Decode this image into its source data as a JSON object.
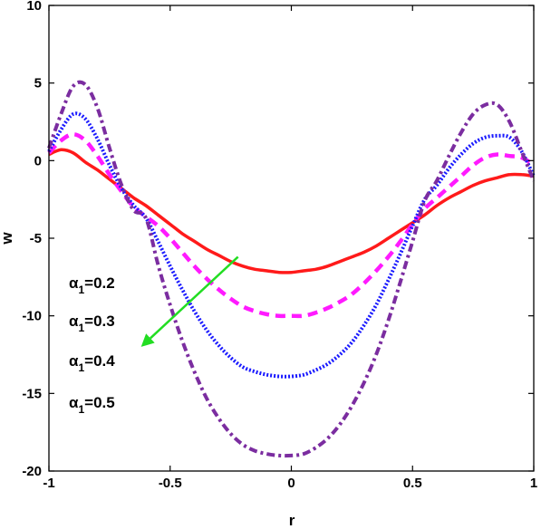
{
  "chart_data": {
    "type": "line",
    "xlabel": "r",
    "ylabel": "w",
    "xlim": [
      -1,
      1
    ],
    "ylim": [
      -20,
      10
    ],
    "x_ticks": [
      "-1",
      "-0.5",
      "0",
      "0.5",
      "1"
    ],
    "y_ticks": [
      "10",
      "5",
      "0",
      "-5",
      "-10",
      "-15",
      "-20"
    ],
    "grid": false,
    "series": [
      {
        "style": "solid",
        "color": "#ff1a1a",
        "x": [
          -1,
          -0.95,
          -0.9,
          -0.85,
          -0.8,
          -0.75,
          -0.7,
          -0.65,
          -0.6,
          -0.55,
          -0.5,
          -0.45,
          -0.4,
          -0.35,
          -0.3,
          -0.25,
          -0.2,
          -0.15,
          -0.1,
          -0.05,
          0,
          0.05,
          0.1,
          0.15,
          0.2,
          0.25,
          0.3,
          0.35,
          0.4,
          0.45,
          0.5,
          0.55,
          0.6,
          0.65,
          0.7,
          0.75,
          0.8,
          0.85,
          0.9,
          0.95,
          1
        ],
        "y": [
          0.4,
          0.7,
          0.5,
          -0.1,
          -0.6,
          -1.2,
          -1.8,
          -2.4,
          -2.9,
          -3.5,
          -4.1,
          -4.7,
          -5.2,
          -5.7,
          -6.1,
          -6.5,
          -6.8,
          -7.0,
          -7.1,
          -7.2,
          -7.2,
          -7.1,
          -7.0,
          -6.8,
          -6.5,
          -6.2,
          -5.9,
          -5.5,
          -5.0,
          -4.5,
          -4.0,
          -3.5,
          -2.9,
          -2.4,
          -2.0,
          -1.6,
          -1.3,
          -1.1,
          -0.9,
          -0.9,
          -1.0
        ]
      },
      {
        "style": "dashed",
        "color": "#ff1aff",
        "x": [
          -1,
          -0.95,
          -0.9,
          -0.85,
          -0.8,
          -0.75,
          -0.7,
          -0.65,
          -0.6,
          -0.55,
          -0.5,
          -0.45,
          -0.4,
          -0.35,
          -0.3,
          -0.25,
          -0.2,
          -0.15,
          -0.1,
          -0.05,
          0,
          0.05,
          0.1,
          0.15,
          0.2,
          0.25,
          0.3,
          0.35,
          0.4,
          0.45,
          0.5,
          0.55,
          0.6,
          0.65,
          0.7,
          0.75,
          0.8,
          0.85,
          0.9,
          0.95,
          1
        ],
        "y": [
          0.5,
          1.3,
          1.7,
          1.3,
          0.3,
          -0.9,
          -2.0,
          -3.0,
          -3.6,
          -4.2,
          -5.0,
          -5.9,
          -6.8,
          -7.6,
          -8.3,
          -8.9,
          -9.4,
          -9.7,
          -9.9,
          -10.0,
          -10.0,
          -10.0,
          -9.8,
          -9.5,
          -9.1,
          -8.6,
          -7.9,
          -7.1,
          -6.2,
          -5.2,
          -4.1,
          -3.1,
          -2.4,
          -1.7,
          -1.0,
          -0.3,
          0.2,
          0.4,
          0.3,
          0.2,
          -0.3
        ]
      },
      {
        "style": "dotted",
        "color": "#1a1aff",
        "x": [
          -1,
          -0.95,
          -0.9,
          -0.85,
          -0.8,
          -0.75,
          -0.7,
          -0.65,
          -0.6,
          -0.55,
          -0.5,
          -0.45,
          -0.4,
          -0.35,
          -0.3,
          -0.25,
          -0.2,
          -0.15,
          -0.1,
          -0.05,
          0,
          0.05,
          0.1,
          0.15,
          0.2,
          0.25,
          0.3,
          0.35,
          0.4,
          0.45,
          0.5,
          0.55,
          0.6,
          0.65,
          0.7,
          0.75,
          0.8,
          0.85,
          0.9,
          0.95,
          1
        ],
        "y": [
          0.6,
          2.0,
          3.0,
          2.7,
          1.4,
          -0.3,
          -1.8,
          -2.9,
          -3.7,
          -5.2,
          -6.8,
          -8.3,
          -9.7,
          -10.9,
          -11.9,
          -12.7,
          -13.3,
          -13.6,
          -13.8,
          -13.9,
          -13.9,
          -13.8,
          -13.5,
          -13.1,
          -12.5,
          -11.7,
          -10.6,
          -9.3,
          -7.7,
          -6.0,
          -4.2,
          -2.5,
          -1.6,
          -0.5,
          0.4,
          1.1,
          1.5,
          1.6,
          1.5,
          0.6,
          -1.0
        ]
      },
      {
        "style": "dash-dot",
        "color": "#7b2da0",
        "x": [
          -1,
          -0.95,
          -0.9,
          -0.85,
          -0.8,
          -0.75,
          -0.7,
          -0.65,
          -0.6,
          -0.55,
          -0.5,
          -0.45,
          -0.4,
          -0.35,
          -0.3,
          -0.25,
          -0.2,
          -0.15,
          -0.1,
          -0.05,
          0,
          0.05,
          0.1,
          0.15,
          0.2,
          0.25,
          0.3,
          0.35,
          0.4,
          0.45,
          0.5,
          0.55,
          0.6,
          0.65,
          0.7,
          0.75,
          0.8,
          0.85,
          0.9,
          0.95,
          1
        ],
        "y": [
          0.8,
          3.0,
          4.8,
          4.9,
          3.4,
          0.8,
          -1.6,
          -3.2,
          -3.7,
          -6.7,
          -9.3,
          -11.6,
          -13.6,
          -15.3,
          -16.6,
          -17.6,
          -18.3,
          -18.7,
          -18.9,
          -19.0,
          -19.0,
          -18.9,
          -18.5,
          -17.9,
          -17.0,
          -15.8,
          -14.3,
          -12.5,
          -10.3,
          -7.8,
          -5.2,
          -2.6,
          -1.3,
          0.3,
          1.8,
          3.0,
          3.6,
          3.6,
          2.5,
          0.6,
          -1.3
        ]
      }
    ],
    "annotations": [
      {
        "prefix": "α",
        "sub": "1",
        "suffix": "=0.2"
      },
      {
        "prefix": "α",
        "sub": "1",
        "suffix": "=0.3"
      },
      {
        "prefix": "α",
        "sub": "1",
        "suffix": "=0.4"
      },
      {
        "prefix": "α",
        "sub": "1",
        "suffix": "=0.5"
      }
    ],
    "arrow": {
      "from": [
        -0.22,
        -6.2
      ],
      "to": [
        -0.62,
        -12.0
      ],
      "color": "#22dd22"
    }
  }
}
